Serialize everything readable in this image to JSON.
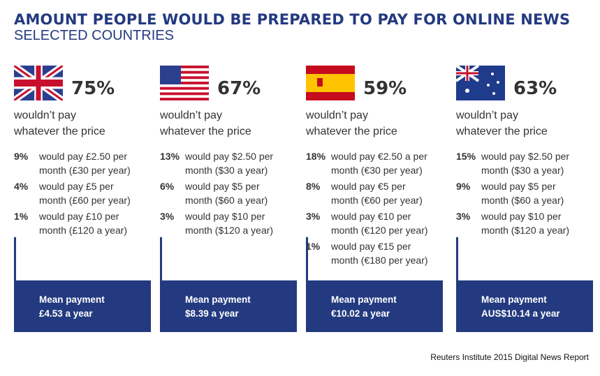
{
  "title": "AMOUNT PEOPLE WOULD BE PREPARED TO PAY FOR ONLINE NEWS",
  "subtitle": "SELECTED COUNTRIES",
  "accent_color": "#233a80",
  "countries": [
    {
      "flag": "uk-flag-icon",
      "no_pay_pct": "75%",
      "no_pay_line1": "wouldn’t pay",
      "no_pay_line2": "whatever the price",
      "rows": [
        {
          "pct": "9%",
          "line1": "would pay £2.50 per",
          "line2": "month (£30 per year)"
        },
        {
          "pct": "4%",
          "line1": "would pay £5 per",
          "line2": "month (£60 per year)"
        },
        {
          "pct": "1%",
          "line1": "would pay £10 per",
          "line2": "month (£120 a year)"
        }
      ],
      "mean_label": "Mean payment",
      "mean_value": "£4.53 a year"
    },
    {
      "flag": "us-flag-icon",
      "no_pay_pct": "67%",
      "no_pay_line1": "wouldn’t pay",
      "no_pay_line2": "whatever the price",
      "rows": [
        {
          "pct": "13%",
          "line1": "would pay $2.50 per",
          "line2": "month ($30 a year)"
        },
        {
          "pct": "6%",
          "line1": "would pay $5 per",
          "line2": "month ($60 a year)"
        },
        {
          "pct": "3%",
          "line1": "would pay $10 per",
          "line2": "month ($120 a year)"
        }
      ],
      "mean_label": "Mean payment",
      "mean_value": "$8.39 a year"
    },
    {
      "flag": "spain-flag-icon",
      "no_pay_pct": "59%",
      "no_pay_line1": "wouldn’t pay",
      "no_pay_line2": "whatever the price",
      "rows": [
        {
          "pct": "18%",
          "line1": "would pay €2.50 a per",
          "line2": "month (€30 per year)"
        },
        {
          "pct": "8%",
          "line1": "would pay €5 per",
          "line2": "month (€60 per year)"
        },
        {
          "pct": "3%",
          "line1": "would pay €10 per",
          "line2": "month (€120 per year)"
        },
        {
          "pct": "1%",
          "line1": "would pay €15 per",
          "line2": "month (€180 per year)"
        }
      ],
      "mean_label": "Mean payment",
      "mean_value": "€10.02 a year"
    },
    {
      "flag": "australia-flag-icon",
      "no_pay_pct": "63%",
      "no_pay_line1": "wouldn’t pay",
      "no_pay_line2": "whatever the price",
      "rows": [
        {
          "pct": "15%",
          "line1": "would pay $2.50 per",
          "line2": "month ($30 a year)"
        },
        {
          "pct": "9%",
          "line1": "would pay $5 per",
          "line2": "month ($60 a year)"
        },
        {
          "pct": "3%",
          "line1": "would pay $10 per",
          "line2": "month ($120 a year)"
        }
      ],
      "mean_label": "Mean payment",
      "mean_value": "AUS$10.14 a year"
    }
  ],
  "source": "Reuters Institute 2015 Digital News Report"
}
